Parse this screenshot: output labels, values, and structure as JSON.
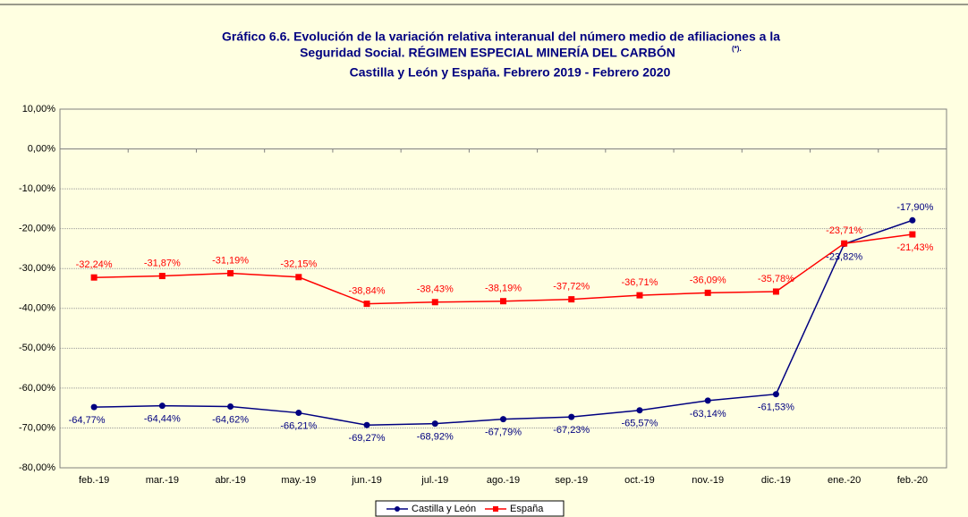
{
  "chart_data": {
    "type": "line",
    "title": [
      "Gráfico 6.6. Evolución de la variación relativa interanual del número medio de  afiliaciones a la",
      "Seguridad Social. RÉGIMEN ESPECIAL MINERÍA DEL CARBÓN",
      "Castilla y León y España. Febrero 2019 - Febrero 2020"
    ],
    "title_note": "(*).",
    "categories": [
      "feb.-19",
      "mar.-19",
      "abr.-19",
      "may.-19",
      "jun.-19",
      "jul.-19",
      "ago.-19",
      "sep.-19",
      "oct.-19",
      "nov.-19",
      "dic.-19",
      "ene.-20",
      "feb.-20"
    ],
    "series": [
      {
        "name": "Castilla y León",
        "color": "#000080",
        "values": [
          -64.77,
          -64.44,
          -64.62,
          -66.21,
          -69.27,
          -68.92,
          -67.79,
          -67.23,
          -65.57,
          -63.14,
          -61.53,
          -23.82,
          -17.9
        ],
        "value_labels": [
          "-64,77%",
          "-64,44%",
          "-64,62%",
          "-66,21%",
          "-69,27%",
          "-68,92%",
          "-67,79%",
          "-67,23%",
          "-65,57%",
          "-63,14%",
          "-61,53%",
          "-23,82%",
          "-17,90%"
        ]
      },
      {
        "name": "España",
        "color": "#ff0000",
        "values": [
          -32.24,
          -31.87,
          -31.19,
          -32.15,
          -38.84,
          -38.43,
          -38.19,
          -37.72,
          -36.71,
          -36.09,
          -35.78,
          -23.71,
          -21.43
        ],
        "value_labels": [
          "-32,24%",
          "-31,87%",
          "-31,19%",
          "-32,15%",
          "-38,84%",
          "-38,43%",
          "-38,19%",
          "-37,72%",
          "-36,71%",
          "-36,09%",
          "-35,78%",
          "-23,71%",
          "-21,43%"
        ]
      }
    ],
    "ylim": [
      -80,
      10
    ],
    "yticks": [
      {
        "value": -80,
        "label": "-80,00%"
      },
      {
        "value": -70,
        "label": "-70,00%"
      },
      {
        "value": -60,
        "label": "-60,00%"
      },
      {
        "value": -50,
        "label": "-50,00%"
      },
      {
        "value": -40,
        "label": "-40,00%"
      },
      {
        "value": -30,
        "label": "-30,00%"
      },
      {
        "value": -20,
        "label": "-20,00%"
      },
      {
        "value": -10,
        "label": "-10,00%"
      },
      {
        "value": 0,
        "label": "0,00%"
      },
      {
        "value": 10,
        "label": "10,00%"
      }
    ],
    "grid": true,
    "legend": "bottom"
  }
}
